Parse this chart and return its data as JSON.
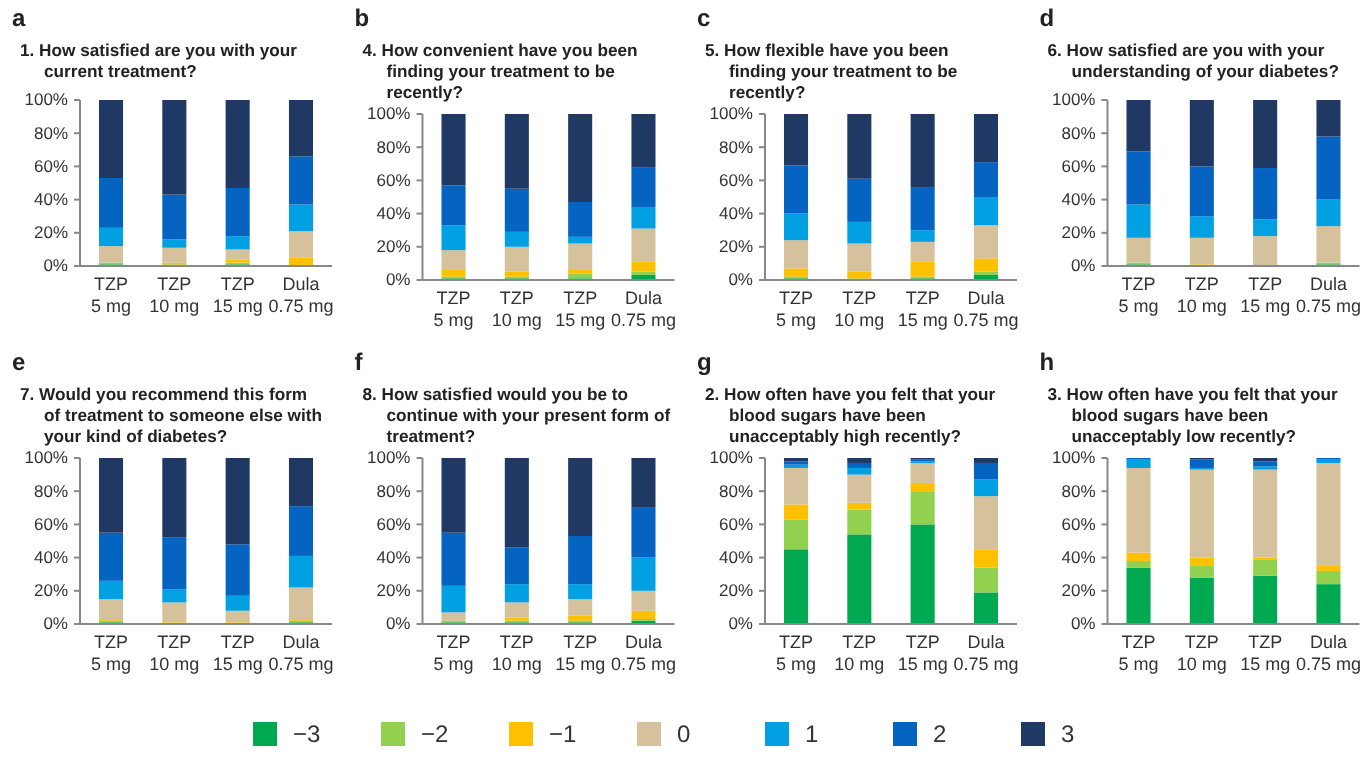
{
  "chart_data": [
    {
      "type": "bar",
      "stacked": true,
      "legend": "bottom",
      "title": "1.  How satisfied are you with your current treatment?",
      "annotations": [
        "a"
      ],
      "categories": [
        "TZP 5 mg",
        "TZP 10 mg",
        "TZP 15 mg",
        "Dula 0.75 mg"
      ],
      "ylim": [
        0,
        100
      ],
      "yticks": [
        {
          "value": 0,
          "label": "0%"
        },
        {
          "value": 20,
          "label": "20%"
        },
        {
          "value": 40,
          "label": "40%"
        },
        {
          "value": 60,
          "label": "60%"
        },
        {
          "value": 80,
          "label": "80%"
        },
        {
          "value": 100,
          "label": "100%"
        }
      ],
      "series": [
        {
          "name": "−3",
          "color": "#00a84f",
          "values": [
            1,
            0,
            1,
            0
          ]
        },
        {
          "name": "−2",
          "color": "#92d050",
          "values": [
            1,
            1,
            1,
            0
          ]
        },
        {
          "name": "−1",
          "color": "#ffc000",
          "values": [
            0,
            1,
            2,
            5
          ]
        },
        {
          "name": "0",
          "color": "#d5c19c",
          "values": [
            10,
            9,
            6,
            16
          ]
        },
        {
          "name": "1",
          "color": "#00a0e3",
          "values": [
            11,
            5,
            8,
            16
          ]
        },
        {
          "name": "2",
          "color": "#0563c1",
          "values": [
            30,
            27,
            29,
            29
          ]
        },
        {
          "name": "3",
          "color": "#1f3864",
          "values": [
            47,
            57,
            53,
            34
          ]
        }
      ]
    },
    {
      "type": "bar",
      "stacked": true,
      "title": "4.  How convenient have you been finding your treatment to be recently?",
      "annotations": [
        "b"
      ],
      "categories": [
        "TZP 5 mg",
        "TZP 10 mg",
        "TZP 15 mg",
        "Dula 0.75 mg"
      ],
      "ylim": [
        0,
        100
      ],
      "yticks": [
        {
          "value": 0,
          "label": "0%"
        },
        {
          "value": 20,
          "label": "20%"
        },
        {
          "value": 40,
          "label": "40%"
        },
        {
          "value": 60,
          "label": "60%"
        },
        {
          "value": 80,
          "label": "80%"
        },
        {
          "value": 100,
          "label": "100%"
        }
      ],
      "series": [
        {
          "color": "#00a84f",
          "values": [
            1,
            1,
            1,
            3
          ]
        },
        {
          "color": "#92d050",
          "values": [
            1,
            1,
            3,
            2
          ]
        },
        {
          "color": "#ffc000",
          "values": [
            4,
            3,
            2,
            6
          ]
        },
        {
          "color": "#d5c19c",
          "values": [
            12,
            15,
            16,
            20
          ]
        },
        {
          "color": "#00a0e3",
          "values": [
            15,
            9,
            4,
            13
          ]
        },
        {
          "color": "#0563c1",
          "values": [
            24,
            26,
            21,
            24
          ]
        },
        {
          "color": "#1f3864",
          "values": [
            43,
            45,
            53,
            32
          ]
        }
      ]
    },
    {
      "type": "bar",
      "stacked": true,
      "title": "5.  How flexible have you been finding your treatment to be recently?",
      "annotations": [
        "c"
      ],
      "categories": [
        "TZP 5 mg",
        "TZP 10 mg",
        "TZP 15 mg",
        "Dula 0.75 mg"
      ],
      "ylim": [
        0,
        100
      ],
      "yticks": [
        {
          "value": 0,
          "label": "0%"
        },
        {
          "value": 20,
          "label": "20%"
        },
        {
          "value": 40,
          "label": "40%"
        },
        {
          "value": 60,
          "label": "60%"
        },
        {
          "value": 80,
          "label": "80%"
        },
        {
          "value": 100,
          "label": "100%"
        }
      ],
      "series": [
        {
          "color": "#00a84f",
          "values": [
            1,
            0,
            1,
            3
          ]
        },
        {
          "color": "#92d050",
          "values": [
            1,
            1,
            1,
            2
          ]
        },
        {
          "color": "#ffc000",
          "values": [
            5,
            4,
            9,
            8
          ]
        },
        {
          "color": "#d5c19c",
          "values": [
            17,
            17,
            12,
            20
          ]
        },
        {
          "color": "#00a0e3",
          "values": [
            16,
            13,
            7,
            17
          ]
        },
        {
          "color": "#0563c1",
          "values": [
            29,
            26,
            26,
            21
          ]
        },
        {
          "color": "#1f3864",
          "values": [
            31,
            39,
            44,
            29
          ]
        }
      ]
    },
    {
      "type": "bar",
      "stacked": true,
      "title": "6.  How satisfied are you with your understanding of your diabetes?",
      "annotations": [
        "d"
      ],
      "categories": [
        "TZP 5 mg",
        "TZP 10 mg",
        "TZP 15 mg",
        "Dula 0.75 mg"
      ],
      "ylim": [
        0,
        100
      ],
      "yticks": [
        {
          "value": 0,
          "label": "0%"
        },
        {
          "value": 20,
          "label": "20%"
        },
        {
          "value": 40,
          "label": "40%"
        },
        {
          "value": 60,
          "label": "60%"
        },
        {
          "value": 80,
          "label": "80%"
        },
        {
          "value": 100,
          "label": "100%"
        }
      ],
      "series": [
        {
          "color": "#00a84f",
          "values": [
            1,
            0,
            0,
            1
          ]
        },
        {
          "color": "#92d050",
          "values": [
            1,
            0,
            0,
            1
          ]
        },
        {
          "color": "#ffc000",
          "values": [
            0,
            1,
            0,
            0
          ]
        },
        {
          "color": "#d5c19c",
          "values": [
            15,
            16,
            18,
            22
          ]
        },
        {
          "color": "#00a0e3",
          "values": [
            20,
            13,
            10,
            16
          ]
        },
        {
          "color": "#0563c1",
          "values": [
            32,
            30,
            31,
            38
          ]
        },
        {
          "color": "#1f3864",
          "values": [
            31,
            40,
            41,
            22
          ]
        }
      ]
    },
    {
      "type": "bar",
      "stacked": true,
      "title": "7.  Would you recommend this form of treatment to someone else with your kind of diabetes?",
      "annotations": [
        "e"
      ],
      "categories": [
        "TZP 5 mg",
        "TZP 10 mg",
        "TZP 15 mg",
        "Dula 0.75 mg"
      ],
      "ylim": [
        0,
        100
      ],
      "yticks": [
        {
          "value": 0,
          "label": "0%"
        },
        {
          "value": 20,
          "label": "20%"
        },
        {
          "value": 40,
          "label": "40%"
        },
        {
          "value": 60,
          "label": "60%"
        },
        {
          "value": 80,
          "label": "80%"
        },
        {
          "value": 100,
          "label": "100%"
        }
      ],
      "series": [
        {
          "color": "#00a84f",
          "values": [
            1,
            0,
            0,
            1
          ]
        },
        {
          "color": "#92d050",
          "values": [
            1,
            0,
            0,
            1
          ]
        },
        {
          "color": "#ffc000",
          "values": [
            1,
            1,
            1,
            1
          ]
        },
        {
          "color": "#d5c19c",
          "values": [
            12,
            12,
            7,
            19
          ]
        },
        {
          "color": "#00a0e3",
          "values": [
            11,
            8,
            9,
            19
          ]
        },
        {
          "color": "#0563c1",
          "values": [
            29,
            31,
            31,
            30
          ]
        },
        {
          "color": "#1f3864",
          "values": [
            45,
            48,
            52,
            29
          ]
        }
      ]
    },
    {
      "type": "bar",
      "stacked": true,
      "title": "8.  How satisfied would you be to continue with your present form of treatment?",
      "annotations": [
        "f"
      ],
      "categories": [
        "TZP 5 mg",
        "TZP 10 mg",
        "TZP 15 mg",
        "Dula 0.75 mg"
      ],
      "ylim": [
        0,
        100
      ],
      "yticks": [
        {
          "value": 0,
          "label": "0%"
        },
        {
          "value": 20,
          "label": "20%"
        },
        {
          "value": 40,
          "label": "40%"
        },
        {
          "value": 60,
          "label": "60%"
        },
        {
          "value": 80,
          "label": "80%"
        },
        {
          "value": 100,
          "label": "100%"
        }
      ],
      "series": [
        {
          "color": "#00a84f",
          "values": [
            1,
            1,
            1,
            2
          ]
        },
        {
          "color": "#92d050",
          "values": [
            1,
            1,
            1,
            1
          ]
        },
        {
          "color": "#ffc000",
          "values": [
            0,
            2,
            3,
            5
          ]
        },
        {
          "color": "#d5c19c",
          "values": [
            5,
            9,
            10,
            12
          ]
        },
        {
          "color": "#00a0e3",
          "values": [
            16,
            11,
            9,
            20
          ]
        },
        {
          "color": "#0563c1",
          "values": [
            32,
            22,
            29,
            30
          ]
        },
        {
          "color": "#1f3864",
          "values": [
            45,
            54,
            47,
            30
          ]
        }
      ]
    },
    {
      "type": "bar",
      "stacked": true,
      "title": "2.  How often have you felt that your blood sugars have been unacceptably high recently?",
      "annotations": [
        "g"
      ],
      "categories": [
        "TZP 5 mg",
        "TZP 10 mg",
        "TZP 15 mg",
        "Dula 0.75 mg"
      ],
      "ylim": [
        0,
        100
      ],
      "yticks": [
        {
          "value": 0,
          "label": "0%"
        },
        {
          "value": 20,
          "label": "20%"
        },
        {
          "value": 40,
          "label": "40%"
        },
        {
          "value": 60,
          "label": "60%"
        },
        {
          "value": 80,
          "label": "80%"
        },
        {
          "value": 100,
          "label": "100%"
        }
      ],
      "series": [
        {
          "color": "#00a84f",
          "values": [
            45,
            54,
            60,
            19
          ]
        },
        {
          "color": "#92d050",
          "values": [
            18,
            15,
            20,
            15
          ]
        },
        {
          "color": "#ffc000",
          "values": [
            9,
            4,
            5,
            11
          ]
        },
        {
          "color": "#d5c19c",
          "values": [
            22,
            17,
            12,
            32
          ]
        },
        {
          "color": "#00a0e3",
          "values": [
            2,
            4,
            1,
            10
          ]
        },
        {
          "color": "#0563c1",
          "values": [
            2,
            3,
            1,
            10
          ]
        },
        {
          "color": "#1f3864",
          "values": [
            2,
            3,
            1,
            3
          ]
        }
      ]
    },
    {
      "type": "bar",
      "stacked": true,
      "title": "3.  How often have you felt that your blood sugars have been unacceptably low recently?",
      "annotations": [
        "h"
      ],
      "categories": [
        "TZP 5 mg",
        "TZP 10 mg",
        "TZP 15 mg",
        "Dula 0.75 mg"
      ],
      "ylim": [
        0,
        100
      ],
      "yticks": [
        {
          "value": 0,
          "label": "0%"
        },
        {
          "value": 20,
          "label": "20%"
        },
        {
          "value": 40,
          "label": "40%"
        },
        {
          "value": 60,
          "label": "60%"
        },
        {
          "value": 80,
          "label": "80%"
        },
        {
          "value": 100,
          "label": "100%"
        }
      ],
      "series": [
        {
          "color": "#00a84f",
          "values": [
            34,
            28,
            29,
            24
          ]
        },
        {
          "color": "#92d050",
          "values": [
            4,
            7,
            10,
            8
          ]
        },
        {
          "color": "#ffc000",
          "values": [
            5,
            5,
            1,
            3
          ]
        },
        {
          "color": "#d5c19c",
          "values": [
            51,
            53,
            53,
            62
          ]
        },
        {
          "color": "#00a0e3",
          "values": [
            5,
            1,
            2,
            2
          ]
        },
        {
          "color": "#0563c1",
          "values": [
            1,
            5,
            3,
            1
          ]
        },
        {
          "color": "#1f3864",
          "values": [
            0,
            1,
            2,
            0
          ]
        }
      ]
    }
  ]
}
